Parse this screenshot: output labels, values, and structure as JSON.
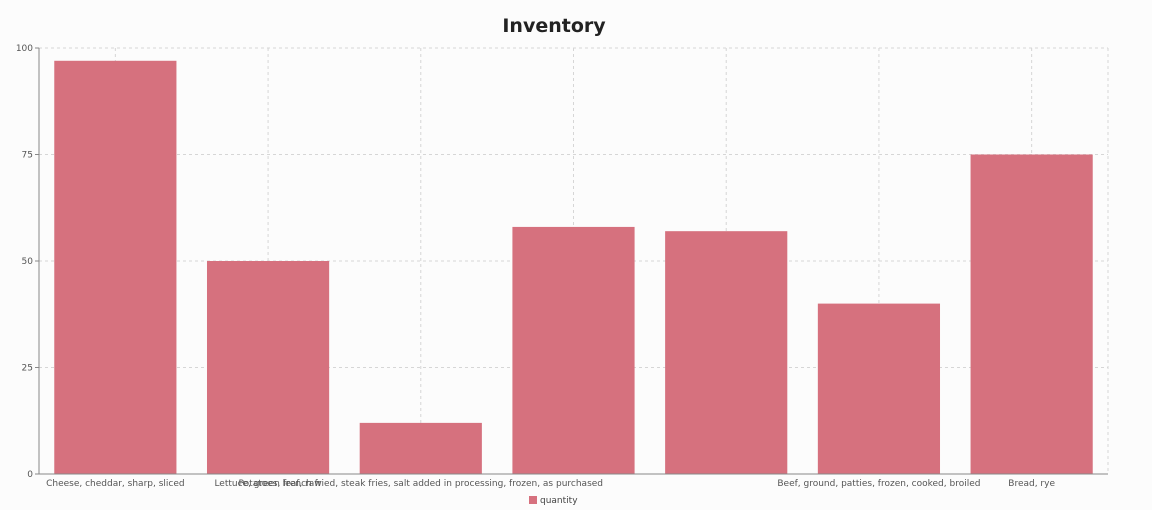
{
  "chart_data": {
    "type": "bar",
    "title": "Inventory",
    "categories": [
      "Cheese, cheddar, sharp, sliced",
      "Lettuce, green leaf, raw",
      "Potatoes, french fried, steak fries, salt added in processing, frozen, as purchased",
      "",
      "",
      "Beef, ground, patties, frozen, cooked, broiled",
      "Bread, rye"
    ],
    "series": [
      {
        "name": "quantity",
        "values": [
          97,
          50,
          12,
          58,
          57,
          40,
          75
        ]
      }
    ],
    "ylim": [
      0,
      100
    ],
    "yticks": [
      0,
      25,
      50,
      75,
      100
    ],
    "grid": true,
    "legend_position": "bottom",
    "colors": {
      "bar": "#d6717e",
      "grid": "#d6d6d6",
      "axis": "#888888"
    }
  }
}
